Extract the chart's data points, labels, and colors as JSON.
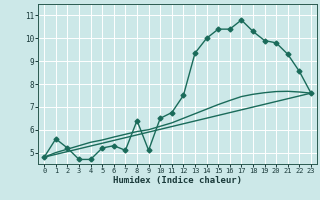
{
  "xlabel": "Humidex (Indice chaleur)",
  "bg_color": "#cce8e8",
  "grid_color": "#ffffff",
  "line_color": "#1a6b5a",
  "marker": "D",
  "marker_size": 2.5,
  "line_width": 1.0,
  "xlim": [
    -0.5,
    23.5
  ],
  "ylim": [
    4.5,
    11.5
  ],
  "yticks": [
    5,
    6,
    7,
    8,
    9,
    10,
    11
  ],
  "xticks": [
    0,
    1,
    2,
    3,
    4,
    5,
    6,
    7,
    8,
    9,
    10,
    11,
    12,
    13,
    14,
    15,
    16,
    17,
    18,
    19,
    20,
    21,
    22,
    23
  ],
  "series1_x": [
    0,
    1,
    2,
    3,
    4,
    5,
    6,
    7,
    8,
    9,
    10,
    11,
    12,
    13,
    14,
    15,
    16,
    17,
    18,
    19,
    20,
    21,
    22,
    23
  ],
  "series1_y": [
    4.8,
    5.6,
    5.2,
    4.7,
    4.7,
    5.2,
    5.3,
    5.1,
    6.4,
    5.1,
    6.5,
    6.75,
    7.5,
    9.35,
    10.0,
    10.4,
    10.4,
    10.8,
    10.3,
    9.9,
    9.8,
    9.3,
    8.55,
    7.6
  ],
  "series2_x": [
    0,
    23
  ],
  "series2_y": [
    4.8,
    7.6
  ],
  "series3_x": [
    0,
    1,
    2,
    3,
    4,
    5,
    6,
    7,
    8,
    9,
    10,
    11,
    12,
    13,
    14,
    15,
    16,
    17,
    18,
    19,
    20,
    21,
    22,
    23
  ],
  "series3_y": [
    4.8,
    5.0,
    5.15,
    5.3,
    5.45,
    5.55,
    5.68,
    5.8,
    5.92,
    6.0,
    6.15,
    6.3,
    6.5,
    6.7,
    6.9,
    7.1,
    7.28,
    7.45,
    7.55,
    7.62,
    7.67,
    7.68,
    7.65,
    7.6
  ]
}
